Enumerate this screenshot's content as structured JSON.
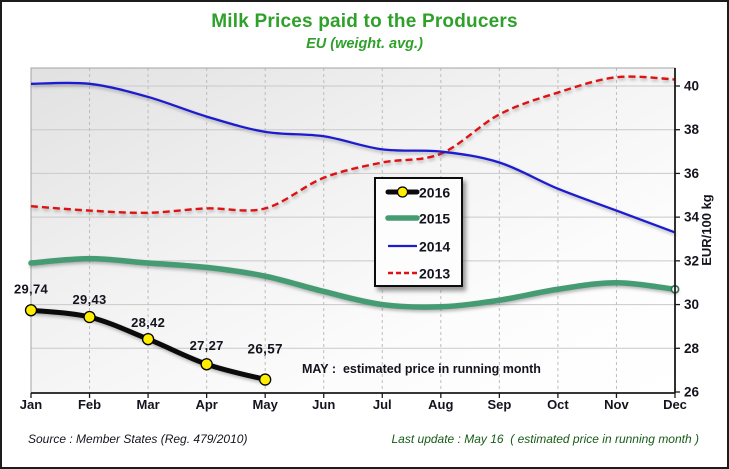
{
  "title": "Milk Prices paid to the Producers",
  "subtitle": "EU (weight. avg.)",
  "annotation": "MAY :  estimated price in running month",
  "footer": {
    "source": "Source : Member States (Reg. 479/2010)",
    "last_update": "Last update : May 16  ( estimated price in running month )"
  },
  "colors": {
    "title_green": "#2fa12b",
    "grid_h": "#c9c9c9",
    "grid_v": "#bdbdbd",
    "axis": "#1a1a1a",
    "plot_border": "#a3a3a3",
    "series_2016": "#0b0b0b",
    "marker_2016": "#ffee00",
    "series_2015": "#459c72",
    "series_2014": "#1b1bd0",
    "series_2013": "#de1212",
    "legend_bg": "#fdfdfd",
    "footer_source": "#15151e",
    "footer_update": "#175c17"
  },
  "chart_data": {
    "type": "line",
    "title": "Milk Prices paid to the Producers",
    "subtitle": "EU (weight. avg.)",
    "categories": [
      "Jan",
      "Feb",
      "Mar",
      "Apr",
      "May",
      "Jun",
      "Jul",
      "Aug",
      "Sep",
      "Oct",
      "Nov",
      "Dec"
    ],
    "ylabel": "EUR/100 kg",
    "ylim": [
      26,
      41
    ],
    "yticks": [
      26,
      28,
      30,
      32,
      34,
      36,
      38,
      40
    ],
    "grid": true,
    "legend_position": "inside-center",
    "legend_order": [
      "2016",
      "2015",
      "2014",
      "2013"
    ],
    "series": [
      {
        "name": "2016",
        "values": [
          29.74,
          29.43,
          28.42,
          27.27,
          26.57
        ],
        "point_labels": [
          "29,74",
          "29,43",
          "28,42",
          "27,27",
          "26,57"
        ],
        "style": "solid-thick-black",
        "markers": "yellow-circles",
        "color_key": "series_2016"
      },
      {
        "name": "2015",
        "values": [
          31.9,
          32.1,
          31.9,
          31.7,
          31.3,
          30.6,
          30.0,
          29.9,
          30.2,
          30.7,
          31.0,
          30.7
        ],
        "style": "solid-thick-green",
        "end_marker": "open-circle",
        "color_key": "series_2015"
      },
      {
        "name": "2014",
        "values": [
          40.1,
          40.1,
          39.5,
          38.6,
          37.9,
          37.7,
          37.1,
          37.0,
          36.5,
          35.3,
          34.3,
          33.3
        ],
        "style": "solid-thin-blue",
        "color_key": "series_2014"
      },
      {
        "name": "2013",
        "values": [
          34.5,
          34.3,
          34.2,
          34.4,
          34.4,
          35.8,
          36.5,
          36.9,
          38.7,
          39.7,
          40.4,
          40.3
        ],
        "style": "dashed-red",
        "color_key": "series_2013"
      }
    ]
  }
}
